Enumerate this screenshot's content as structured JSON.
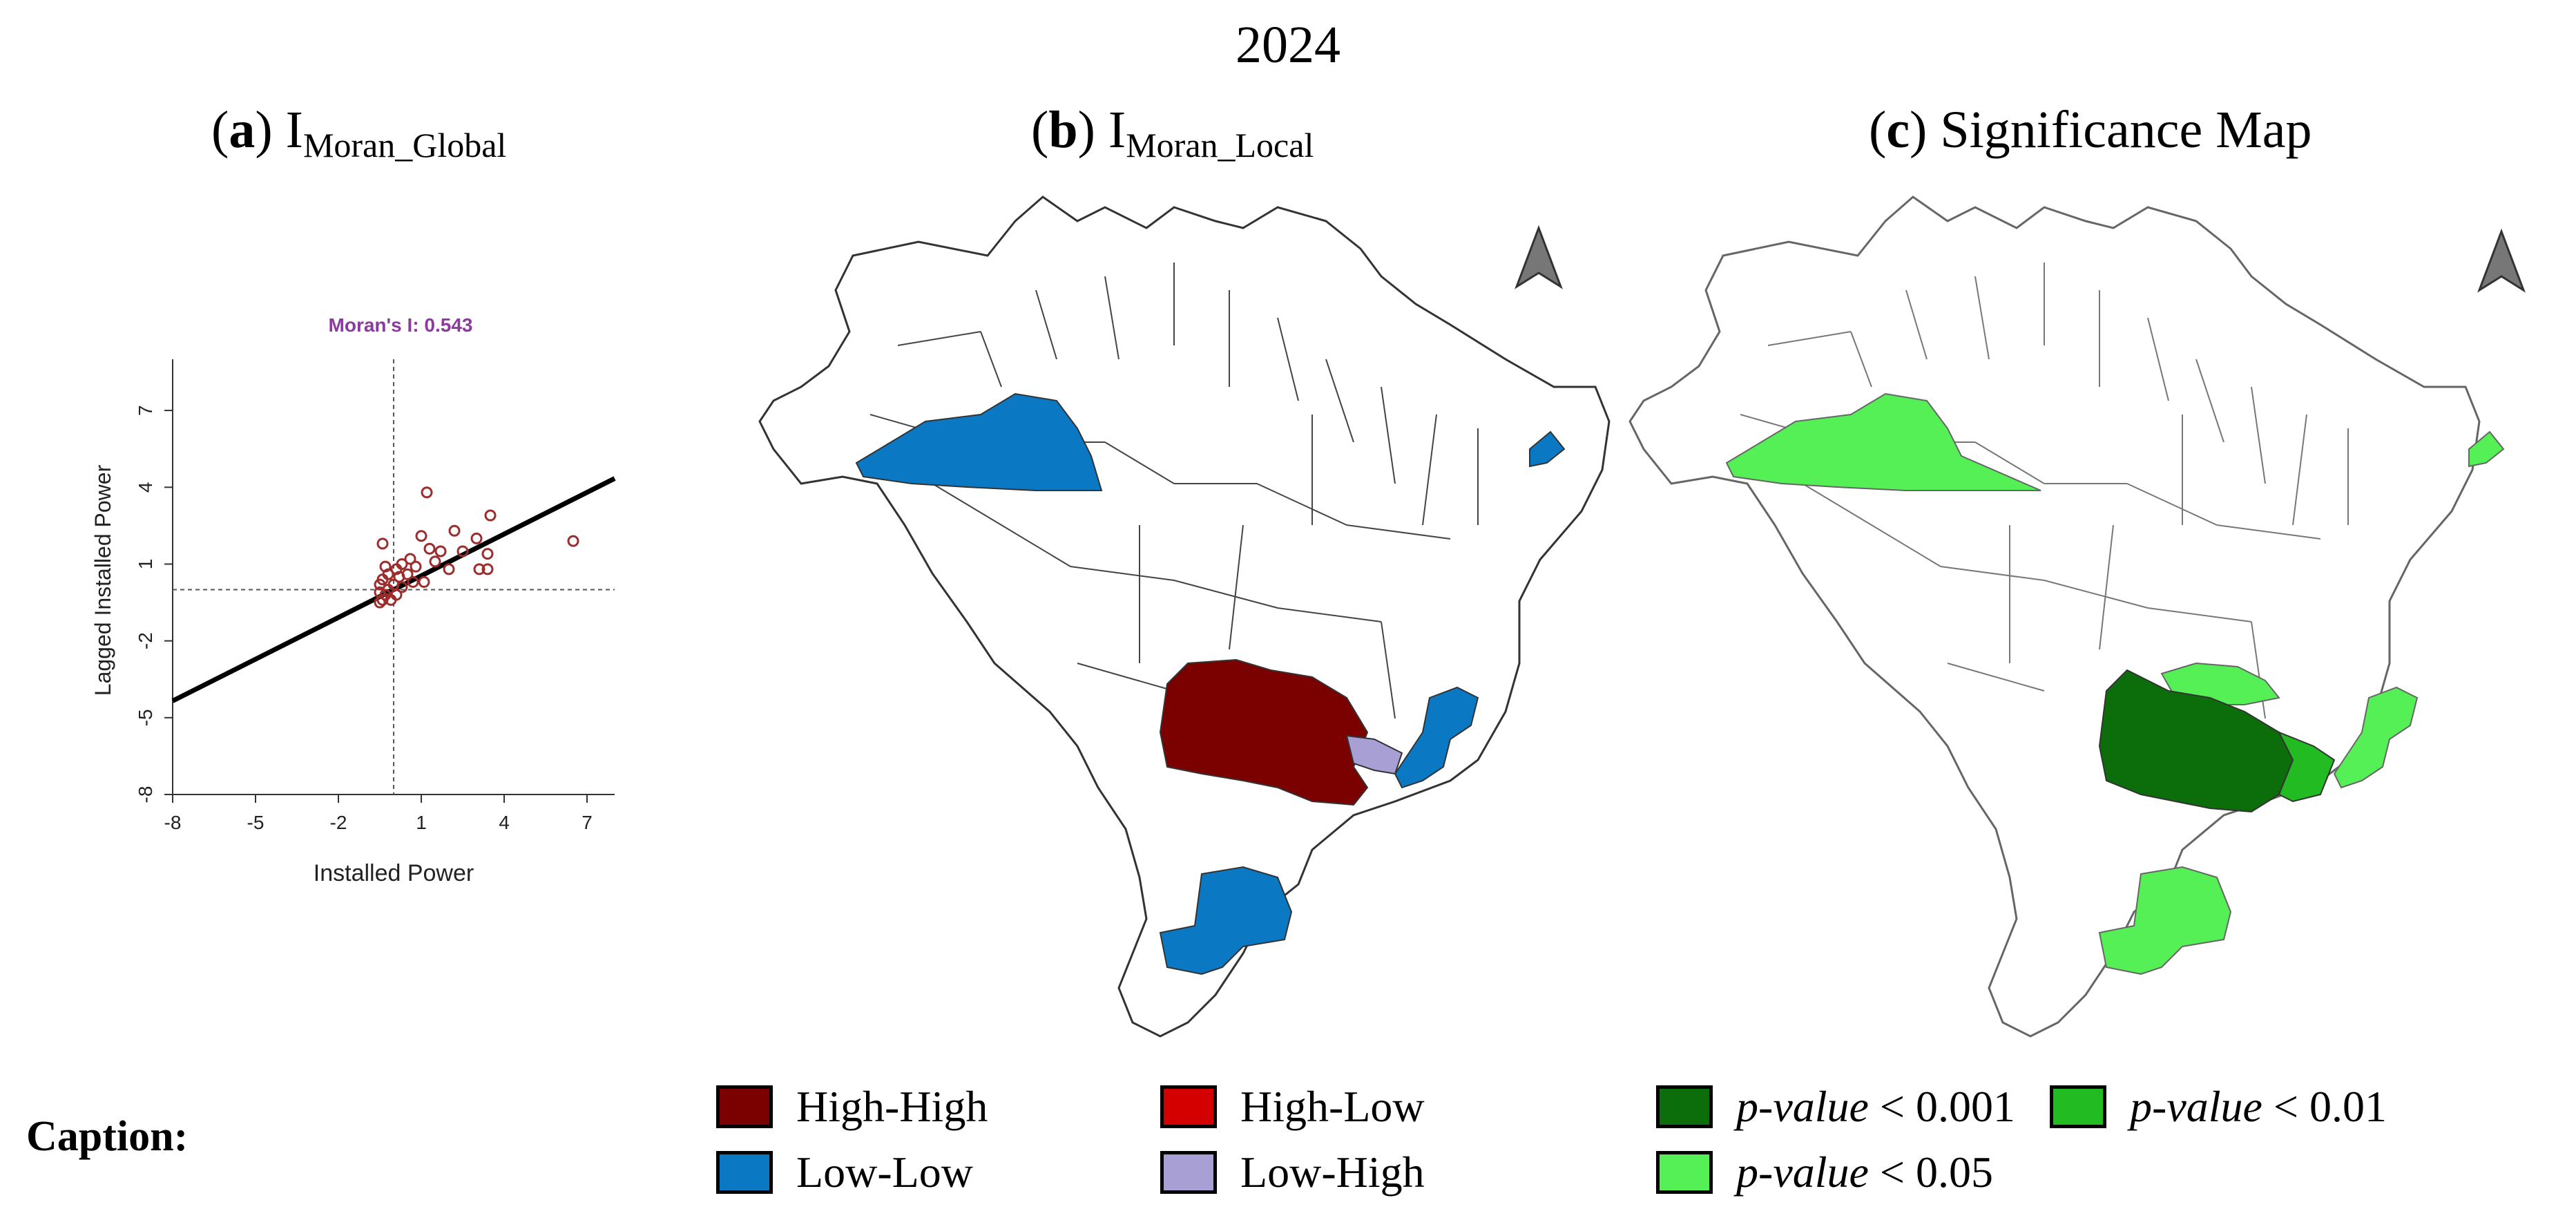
{
  "title": "2024",
  "panels": {
    "a": {
      "letter": "a",
      "name": "I",
      "sub": "Moran_Global"
    },
    "b": {
      "letter": "b",
      "name": "I",
      "sub": "Moran_Local"
    },
    "c": {
      "letter": "c",
      "name": "Significance Map",
      "sub": ""
    }
  },
  "chart_data": {
    "type": "scatter",
    "title": "Moran's I: 0.543",
    "xlabel": "Installed Power",
    "ylabel": "Lagged Installed Power",
    "xlim": [
      -8,
      8
    ],
    "ylim": [
      -8,
      9
    ],
    "xticks": [
      "-8",
      "-5",
      "-2",
      "1",
      "4",
      "7"
    ],
    "yticks": [
      "-8",
      "-5",
      "-2",
      "1",
      "4",
      "7"
    ],
    "regression_slope": 0.543,
    "points": [
      [
        1.2,
        3.8
      ],
      [
        3.5,
        2.9
      ],
      [
        1.0,
        2.1
      ],
      [
        2.2,
        2.3
      ],
      [
        3.0,
        2.0
      ],
      [
        6.5,
        1.9
      ],
      [
        -0.4,
        1.8
      ],
      [
        1.3,
        1.6
      ],
      [
        1.7,
        1.5
      ],
      [
        2.5,
        1.5
      ],
      [
        3.4,
        1.4
      ],
      [
        0.6,
        1.2
      ],
      [
        1.5,
        1.1
      ],
      [
        0.3,
        1.0
      ],
      [
        -0.3,
        0.9
      ],
      [
        0.1,
        0.8
      ],
      [
        0.8,
        0.9
      ],
      [
        2.0,
        0.8
      ],
      [
        3.1,
        0.8
      ],
      [
        3.4,
        0.8
      ],
      [
        -0.2,
        0.6
      ],
      [
        0.5,
        0.6
      ],
      [
        0.2,
        0.5
      ],
      [
        -0.4,
        0.4
      ],
      [
        0.7,
        0.3
      ],
      [
        1.1,
        0.3
      ],
      [
        -0.5,
        0.2
      ],
      [
        0.0,
        0.2
      ],
      [
        0.3,
        0.1
      ],
      [
        -0.2,
        0.0
      ],
      [
        -0.5,
        -0.1
      ],
      [
        -0.3,
        -0.2
      ],
      [
        0.1,
        -0.2
      ],
      [
        -0.4,
        -0.4
      ],
      [
        -0.1,
        -0.4
      ],
      [
        -0.5,
        -0.5
      ]
    ],
    "colors": {
      "points": "#9b2d2d",
      "title": "#8b3a9e",
      "line": "#000000"
    }
  },
  "map_legend": {
    "high_high": {
      "label": "High-High",
      "color": "#7b0000"
    },
    "high_low": {
      "label": "High-Low",
      "color": "#d40000"
    },
    "low_low": {
      "label": "Low-Low",
      "color": "#0a78c2"
    },
    "low_high": {
      "label": "Low-High",
      "color": "#a8a0d4"
    }
  },
  "significance_legend": {
    "p001": {
      "prefix": "p-value",
      "suffix": " < 0.001",
      "color": "#0b6e0b"
    },
    "p01": {
      "prefix": "p-value",
      "suffix": " < 0.01",
      "color": "#22bb22"
    },
    "p05": {
      "prefix": "p-value",
      "suffix": " < 0.05",
      "color": "#55f055"
    }
  },
  "caption": "Caption:"
}
